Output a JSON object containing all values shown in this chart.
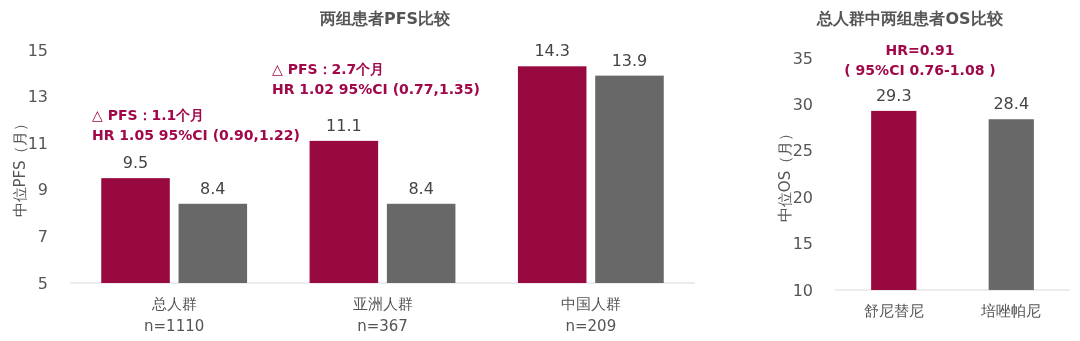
{
  "chart_data": [
    {
      "type": "bar",
      "title": "两组患者PFS比较",
      "ylabel": "中位PFS（月）",
      "categories": [
        "总人群\nn=1110",
        "亚洲人群\nn=367",
        "中国人群\nn=209"
      ],
      "series": [
        {
          "color": "#98093f",
          "values": [
            9.5,
            11.1,
            14.3
          ]
        },
        {
          "color": "#686868",
          "values": [
            8.4,
            8.4,
            13.9
          ]
        }
      ],
      "ylim": [
        5,
        15
      ],
      "yticks": [
        5,
        7,
        9,
        11,
        13,
        15
      ],
      "data_labels": true,
      "annotations": [
        "△ PFS：1.1个月\nHR 1.05 95%CI (0.90,1.22)",
        "△ PFS：2.7个月\nHR 1.02 95%CI (0.77,1.35)"
      ]
    },
    {
      "type": "bar",
      "title": "总人群中两组患者OS比较",
      "ylabel": "中位OS（月）",
      "categories": [
        "舒尼替尼",
        "培唑帕尼"
      ],
      "values": [
        29.3,
        28.4
      ],
      "colors": [
        "#98093f",
        "#686868"
      ],
      "ylim": [
        10,
        35
      ],
      "yticks": [
        10,
        15,
        20,
        25,
        30,
        35
      ],
      "data_labels": true,
      "annotations": [
        "HR=0.91\n( 95%CI 0.76-1.08 )"
      ]
    }
  ]
}
